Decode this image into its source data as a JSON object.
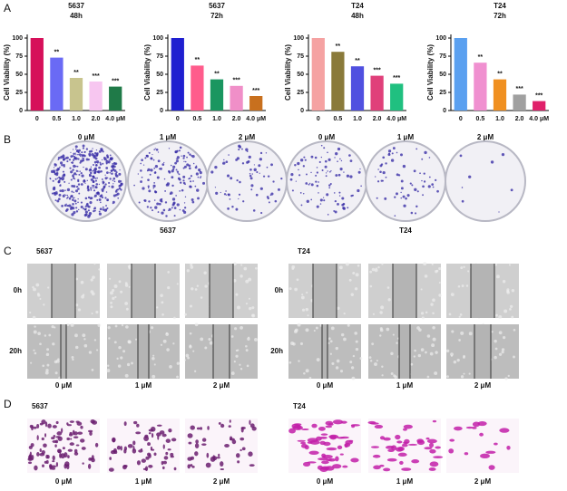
{
  "panel_labels": [
    "A",
    "B",
    "C",
    "D"
  ],
  "chart_data": [
    {
      "type": "bar",
      "title": "5637",
      "subtitle": "48h",
      "ylabel": "Cell Viability (%)",
      "categories": [
        "0",
        "0.5",
        "1.0",
        "2.0",
        "4.0 μM"
      ],
      "values": [
        100,
        73,
        45,
        40,
        33
      ],
      "colors": [
        "#d6105a",
        "#6a6af5",
        "#c8c48e",
        "#f7c6f0",
        "#1f7a48"
      ],
      "annotations": [
        null,
        "**",
        "**",
        "***",
        "***"
      ],
      "ylim": [
        0,
        105
      ],
      "yticks": [
        0,
        25,
        50,
        75,
        100
      ]
    },
    {
      "type": "bar",
      "title": "5637",
      "subtitle": "72h",
      "ylabel": "Cell Viability (%)",
      "categories": [
        "0",
        "0.5",
        "1.0",
        "2.0",
        "4.0 μM"
      ],
      "values": [
        100,
        62,
        43,
        34,
        20
      ],
      "colors": [
        "#1f1fd0",
        "#ff5c8c",
        "#1a9660",
        "#f08fc8",
        "#c8701e"
      ],
      "annotations": [
        null,
        "**",
        "**",
        "***",
        "***"
      ],
      "ylim": [
        0,
        105
      ],
      "yticks": [
        0,
        25,
        50,
        75,
        100
      ]
    },
    {
      "type": "bar",
      "title": "T24",
      "subtitle": "48h",
      "ylabel": "Cell Viability (%)",
      "categories": [
        "0",
        "0.5",
        "1.0",
        "2.0",
        "4.0 μM"
      ],
      "values": [
        100,
        81,
        61,
        48,
        37
      ],
      "colors": [
        "#f5a2a2",
        "#8a7a3a",
        "#5050e0",
        "#e0407a",
        "#20c080"
      ],
      "annotations": [
        null,
        "**",
        "**",
        "***",
        "***"
      ],
      "ylim": [
        0,
        105
      ],
      "yticks": [
        0,
        25,
        50,
        75,
        100
      ]
    },
    {
      "type": "bar",
      "title": "T24",
      "subtitle": "72h",
      "ylabel": "Cell Viability (%)",
      "categories": [
        "0",
        "0.5",
        "1.0",
        "2.0",
        "4.0 μM"
      ],
      "values": [
        100,
        66,
        43,
        22,
        13
      ],
      "colors": [
        "#5aa0f0",
        "#f090d0",
        "#f09020",
        "#a0a0a0",
        "#e0206a"
      ],
      "annotations": [
        null,
        "**",
        "**",
        "***",
        "***"
      ],
      "ylim": [
        0,
        105
      ],
      "yticks": [
        0,
        25,
        50,
        75,
        100
      ]
    }
  ],
  "colony": {
    "groups": [
      {
        "name": "5637",
        "doses": [
          "0 μM",
          "1 μM",
          "2 μM"
        ]
      },
      {
        "name": "T24",
        "doses": [
          "0 μM",
          "1 μM",
          "2 μM"
        ]
      }
    ]
  },
  "wound": {
    "groups": [
      {
        "name": "5637",
        "times": [
          "0h",
          "20h"
        ],
        "doses": [
          "0 μM",
          "1 μM",
          "2 μM"
        ]
      },
      {
        "name": "T24",
        "times": [
          "0h",
          "20h"
        ],
        "doses": [
          "0 μM",
          "1 μM",
          "2 μM"
        ]
      }
    ]
  },
  "invasion": {
    "groups": [
      {
        "name": "5637",
        "doses": [
          "0 μM",
          "1 μM",
          "2 μM"
        ]
      },
      {
        "name": "T24",
        "doses": [
          "0 μM",
          "1 μM",
          "2 μM"
        ]
      }
    ]
  }
}
